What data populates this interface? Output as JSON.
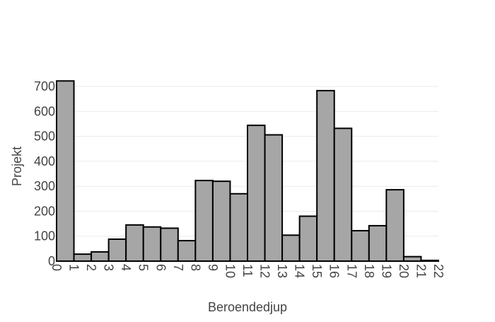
{
  "chart_data": {
    "type": "bar",
    "title": "",
    "xlabel": "Beroendedjup",
    "ylabel": "Projekt",
    "categories": [
      "0",
      "1",
      "2",
      "3",
      "4",
      "5",
      "6",
      "7",
      "8",
      "9",
      "10",
      "11",
      "12",
      "13",
      "14",
      "15",
      "16",
      "17",
      "18",
      "19",
      "20",
      "21"
    ],
    "x_tick_labels": [
      "0",
      "1",
      "2",
      "3",
      "4",
      "5",
      "6",
      "7",
      "8",
      "9",
      "10",
      "11",
      "12",
      "13",
      "14",
      "15",
      "16",
      "17",
      "18",
      "19",
      "20",
      "21",
      "22"
    ],
    "values": [
      722,
      28,
      37,
      88,
      145,
      137,
      132,
      82,
      323,
      320,
      270,
      544,
      506,
      104,
      180,
      683,
      532,
      122,
      142,
      286,
      18,
      3
    ],
    "ylim": [
      0,
      740
    ],
    "xlim": [
      0,
      22
    ],
    "y_ticks": [
      0,
      100,
      200,
      300,
      400,
      500,
      600,
      700
    ],
    "grid": true,
    "legend": "none",
    "bar_color": "#a6a6a6",
    "bar_edge_color": "#000000"
  }
}
